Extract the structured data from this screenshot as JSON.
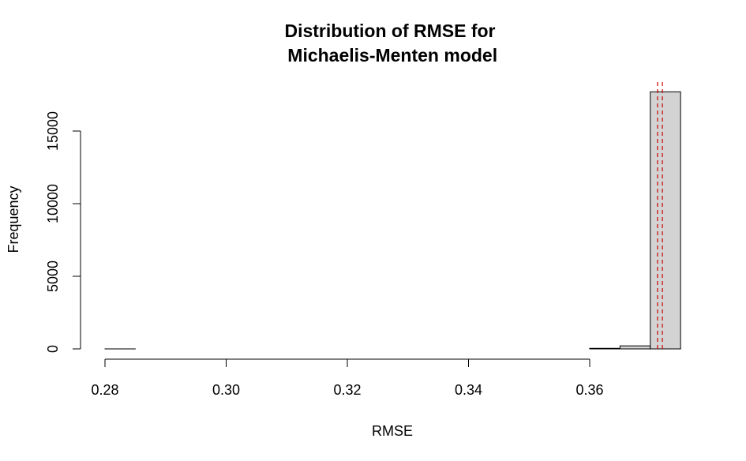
{
  "chart_data": {
    "type": "bar",
    "subtype": "histogram",
    "title_lines": [
      "Distribution of RMSE for",
      " Michaelis-Menten model"
    ],
    "xlabel": "RMSE",
    "ylabel": "Frequency",
    "xlim": [
      0.28,
      0.375
    ],
    "ylim": [
      0,
      17700
    ],
    "x_ticks": [
      0.28,
      0.3,
      0.32,
      0.34,
      0.36
    ],
    "x_tick_labels": [
      "0.28",
      "0.30",
      "0.32",
      "0.34",
      "0.36"
    ],
    "y_ticks": [
      0,
      5000,
      10000,
      15000
    ],
    "y_tick_labels": [
      "0",
      "5000",
      "10000",
      "15000"
    ],
    "bins": [
      {
        "x0": 0.28,
        "x1": 0.285,
        "value": 1
      },
      {
        "x0": 0.285,
        "x1": 0.29,
        "value": 0
      },
      {
        "x0": 0.29,
        "x1": 0.295,
        "value": 0
      },
      {
        "x0": 0.295,
        "x1": 0.3,
        "value": 0
      },
      {
        "x0": 0.3,
        "x1": 0.305,
        "value": 0
      },
      {
        "x0": 0.305,
        "x1": 0.31,
        "value": 0
      },
      {
        "x0": 0.31,
        "x1": 0.315,
        "value": 0
      },
      {
        "x0": 0.315,
        "x1": 0.32,
        "value": 0
      },
      {
        "x0": 0.32,
        "x1": 0.325,
        "value": 0
      },
      {
        "x0": 0.325,
        "x1": 0.33,
        "value": 0
      },
      {
        "x0": 0.33,
        "x1": 0.335,
        "value": 0
      },
      {
        "x0": 0.335,
        "x1": 0.34,
        "value": 0
      },
      {
        "x0": 0.34,
        "x1": 0.345,
        "value": 0
      },
      {
        "x0": 0.345,
        "x1": 0.35,
        "value": 0
      },
      {
        "x0": 0.35,
        "x1": 0.355,
        "value": 0
      },
      {
        "x0": 0.355,
        "x1": 0.36,
        "value": 0
      },
      {
        "x0": 0.36,
        "x1": 0.365,
        "value": 40
      },
      {
        "x0": 0.365,
        "x1": 0.37,
        "value": 210
      },
      {
        "x0": 0.37,
        "x1": 0.375,
        "value": 17700
      }
    ],
    "reference_lines": [
      {
        "x": 0.3712,
        "color": "#cc0000",
        "style": "dashed"
      },
      {
        "x": 0.372,
        "color": "#cc0000",
        "style": "dashed"
      }
    ],
    "bar_fill": "#d3d3d3",
    "bar_stroke": "#000000",
    "grid": false,
    "legend": "none"
  }
}
